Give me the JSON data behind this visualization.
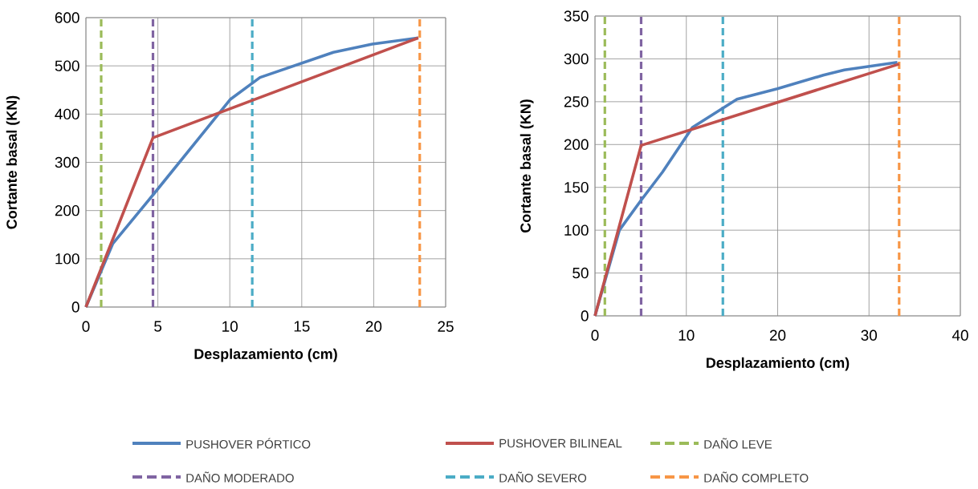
{
  "chart_data": [
    {
      "type": "line",
      "xlabel": "Desplazamiento (cm)",
      "ylabel": "Cortante basal (KN)",
      "xlim": [
        0,
        25
      ],
      "ylim": [
        0,
        600
      ],
      "xticks": [
        0,
        5,
        10,
        15,
        20,
        25
      ],
      "yticks": [
        0,
        100,
        200,
        300,
        400,
        500,
        600
      ],
      "grid": true,
      "legend": "bottom",
      "line_style": "solid",
      "series": [
        {
          "name": "PUSHOVER PÓRTICO",
          "color": "#4f81bd",
          "x": [
            0,
            1.86,
            4.76,
            10.05,
            12.1,
            17.2,
            19.9,
            23.1
          ],
          "values": [
            0,
            131,
            236,
            431,
            476,
            528,
            545,
            558
          ]
        },
        {
          "name": "PUSHOVER BILINEAL",
          "color": "#c0504d",
          "x": [
            0,
            4.66,
            23.1
          ],
          "values": [
            0,
            351,
            558
          ]
        }
      ],
      "ref_lines": [
        {
          "axis": "x",
          "value": 1.06,
          "label": "DAÑO LEVE",
          "color": "#9bbb59",
          "line_style": "dashed"
        },
        {
          "axis": "x",
          "value": 4.66,
          "label": "DAÑO MODERADO",
          "color": "#8064a2",
          "line_style": "dashed"
        },
        {
          "axis": "x",
          "value": 11.56,
          "label": "DAÑO SEVERO",
          "color": "#4bacc6",
          "line_style": "dashed"
        },
        {
          "axis": "x",
          "value": 23.2,
          "label": "DAÑO COMPLETO",
          "color": "#f79646",
          "line_style": "dashed"
        }
      ]
    },
    {
      "type": "line",
      "xlabel": "Desplazamiento (cm)",
      "ylabel": "Cortante basal (KN)",
      "xlim": [
        0,
        40
      ],
      "ylim": [
        0,
        350
      ],
      "xticks": [
        0,
        10,
        20,
        30,
        40
      ],
      "yticks": [
        0,
        50,
        100,
        150,
        200,
        250,
        300,
        350
      ],
      "grid": true,
      "line_style": "solid",
      "series": [
        {
          "color": "#4f81bd",
          "x": [
            0,
            2.67,
            5.05,
            7.4,
            10.66,
            15.55,
            19.95,
            25,
            27.3,
            33.1
          ],
          "values": [
            0,
            100,
            135,
            168,
            220,
            253,
            265,
            281,
            287,
            296
          ]
        },
        {
          "color": "#c0504d",
          "x": [
            0,
            5.05,
            33.3
          ],
          "values": [
            0,
            199,
            294
          ]
        }
      ],
      "ref_lines": [
        {
          "axis": "x",
          "value": 1.08,
          "color": "#9bbb59",
          "line_style": "dashed"
        },
        {
          "axis": "x",
          "value": 5.05,
          "color": "#8064a2",
          "line_style": "dashed"
        },
        {
          "axis": "x",
          "value": 14.0,
          "color": "#4bacc6",
          "line_style": "dashed"
        },
        {
          "axis": "x",
          "value": 33.3,
          "color": "#f79646",
          "line_style": "dashed"
        }
      ]
    }
  ]
}
